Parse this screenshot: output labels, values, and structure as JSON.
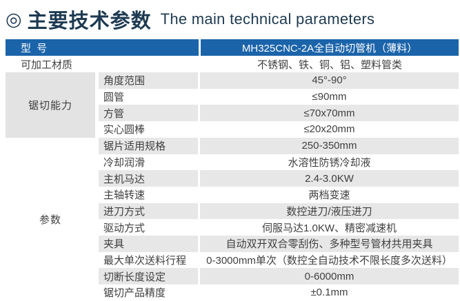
{
  "title": {
    "icon": "◎",
    "zh": "主要技术参数",
    "en": "The main technical parameters"
  },
  "colors": {
    "header_blue": "#1b64aa",
    "title_navy": "#1e3a52",
    "stripe_gray": "#e7e7e7",
    "category_block_gray": "#e3e3e3",
    "text_gray": "#3f3f3f"
  },
  "table": {
    "header": {
      "label": "型 号",
      "value": "MH325CNC-2A全自动切管机（薄料）"
    },
    "material_row": {
      "label": "可加工材质",
      "value": "不锈钢、铁、铜、铝、塑料管类"
    },
    "groups": [
      {
        "category": "锯切能力",
        "category_shaded": true,
        "rows": [
          {
            "label": "角度范围",
            "value": "45°-90°"
          },
          {
            "label": "圆管",
            "value": "≤90mm"
          },
          {
            "label": "方管",
            "value": "≤70x70mm"
          },
          {
            "label": "实心圆棒",
            "value": "≤20x20mm"
          }
        ]
      },
      {
        "category": "参数",
        "category_shaded": false,
        "rows": [
          {
            "label": "锯片适用规格",
            "value": "250-350mm"
          },
          {
            "label": "冷却润滑",
            "value": "水溶性防锈冷却液"
          },
          {
            "label": "主机马达",
            "value": "2.4-3.0KW"
          },
          {
            "label": "主轴转速",
            "value": "两档变速"
          },
          {
            "label": "进刀方式",
            "value": "数控进刀/液压进刀"
          },
          {
            "label": "驱动方式",
            "value": "伺服马达1.0KW、精密减速机"
          },
          {
            "label": "夹具",
            "value": "自动双开双合零刮伤、多种型号管材共用夹具"
          },
          {
            "label": "最大单次送料行程",
            "value": "0-3000mm单次（数控全自动技术不限长度多次送料）"
          },
          {
            "label": "切断长度设定",
            "value": "0-6000mm"
          },
          {
            "label": "锯切产品精度",
            "value": "±0.1mm"
          }
        ]
      }
    ]
  }
}
